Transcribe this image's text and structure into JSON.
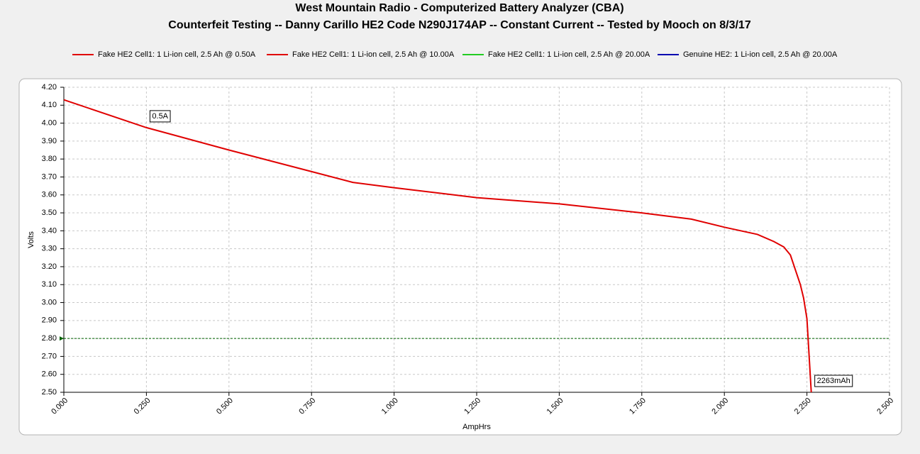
{
  "chart_data": {
    "type": "line",
    "title": "West Mountain Radio - Computerized Battery Analyzer (CBA)",
    "subtitle": "Counterfeit Testing -- Danny Carillo HE2 Code N290J174AP -- Constant Current -- Tested by Mooch on 8/3/17",
    "x_label": "AmpHrs",
    "y_label": "Volts",
    "xlim": [
      0,
      2.5
    ],
    "ylim": [
      2.5,
      4.2
    ],
    "xticks": [
      {
        "value": 0,
        "label": "0.000"
      },
      {
        "value": 0.25,
        "label": "0.250"
      },
      {
        "value": 0.5,
        "label": "0.500"
      },
      {
        "value": 0.75,
        "label": "0.750"
      },
      {
        "value": 1,
        "label": "1.000"
      },
      {
        "value": 1.25,
        "label": "1.250"
      },
      {
        "value": 1.5,
        "label": "1.500"
      },
      {
        "value": 1.75,
        "label": "1.750"
      },
      {
        "value": 2,
        "label": "2.000"
      },
      {
        "value": 2.25,
        "label": "2.250"
      },
      {
        "value": 2.5,
        "label": "2.500"
      }
    ],
    "yticks": [
      {
        "value": 2.5,
        "label": "2.50"
      },
      {
        "value": 2.6,
        "label": "2.60"
      },
      {
        "value": 2.7,
        "label": "2.70"
      },
      {
        "value": 2.8,
        "label": "2.80"
      },
      {
        "value": 2.9,
        "label": "2.90"
      },
      {
        "value": 3.0,
        "label": "3.00"
      },
      {
        "value": 3.1,
        "label": "3.10"
      },
      {
        "value": 3.2,
        "label": "3.20"
      },
      {
        "value": 3.3,
        "label": "3.30"
      },
      {
        "value": 3.4,
        "label": "3.40"
      },
      {
        "value": 3.5,
        "label": "3.50"
      },
      {
        "value": 3.6,
        "label": "3.60"
      },
      {
        "value": 3.7,
        "label": "3.70"
      },
      {
        "value": 3.8,
        "label": "3.80"
      },
      {
        "value": 3.9,
        "label": "3.90"
      },
      {
        "value": 4.0,
        "label": "4.00"
      },
      {
        "value": 4.1,
        "label": "4.10"
      },
      {
        "value": 4.2,
        "label": "4.20"
      }
    ],
    "grid": true,
    "series": [
      {
        "name": "Fake HE2 Cell1: 1 Li-ion cell, 2.5 Ah @ 0.50A",
        "color": "#e00000",
        "x": [
          0,
          0.25,
          0.5,
          0.75,
          0.875,
          1.0,
          1.25,
          1.5,
          1.75,
          1.9,
          2.0,
          2.1,
          2.15,
          2.18,
          2.2,
          2.23,
          2.24,
          2.25,
          2.263
        ],
        "values": [
          4.13,
          3.975,
          3.85,
          3.73,
          3.67,
          3.64,
          3.585,
          3.55,
          3.5,
          3.465,
          3.42,
          3.38,
          3.34,
          3.31,
          3.265,
          3.1,
          3.025,
          2.91,
          2.5
        ]
      },
      {
        "name": "Fake HE2 Cell1: 1 Li-ion cell, 2.5 Ah @ 10.00A",
        "color": "#e00000",
        "x": [],
        "values": []
      },
      {
        "name": "Fake HE2 Cell1: 1 Li-ion cell, 2.5 Ah @ 20.00A",
        "color": "#22cc22",
        "x": [],
        "values": []
      },
      {
        "name": "Genuine HE2: 1 Li-ion cell, 2.5 Ah @ 20.00A",
        "color": "#0000b0",
        "x": [],
        "values": []
      }
    ],
    "reference_line": {
      "value": 2.8,
      "color": "#006400"
    },
    "annotations": [
      {
        "text": "0.5A",
        "x": 0.25,
        "y": 3.975
      },
      {
        "text": "2263mAh",
        "x": 2.263,
        "y": 2.5
      }
    ]
  }
}
